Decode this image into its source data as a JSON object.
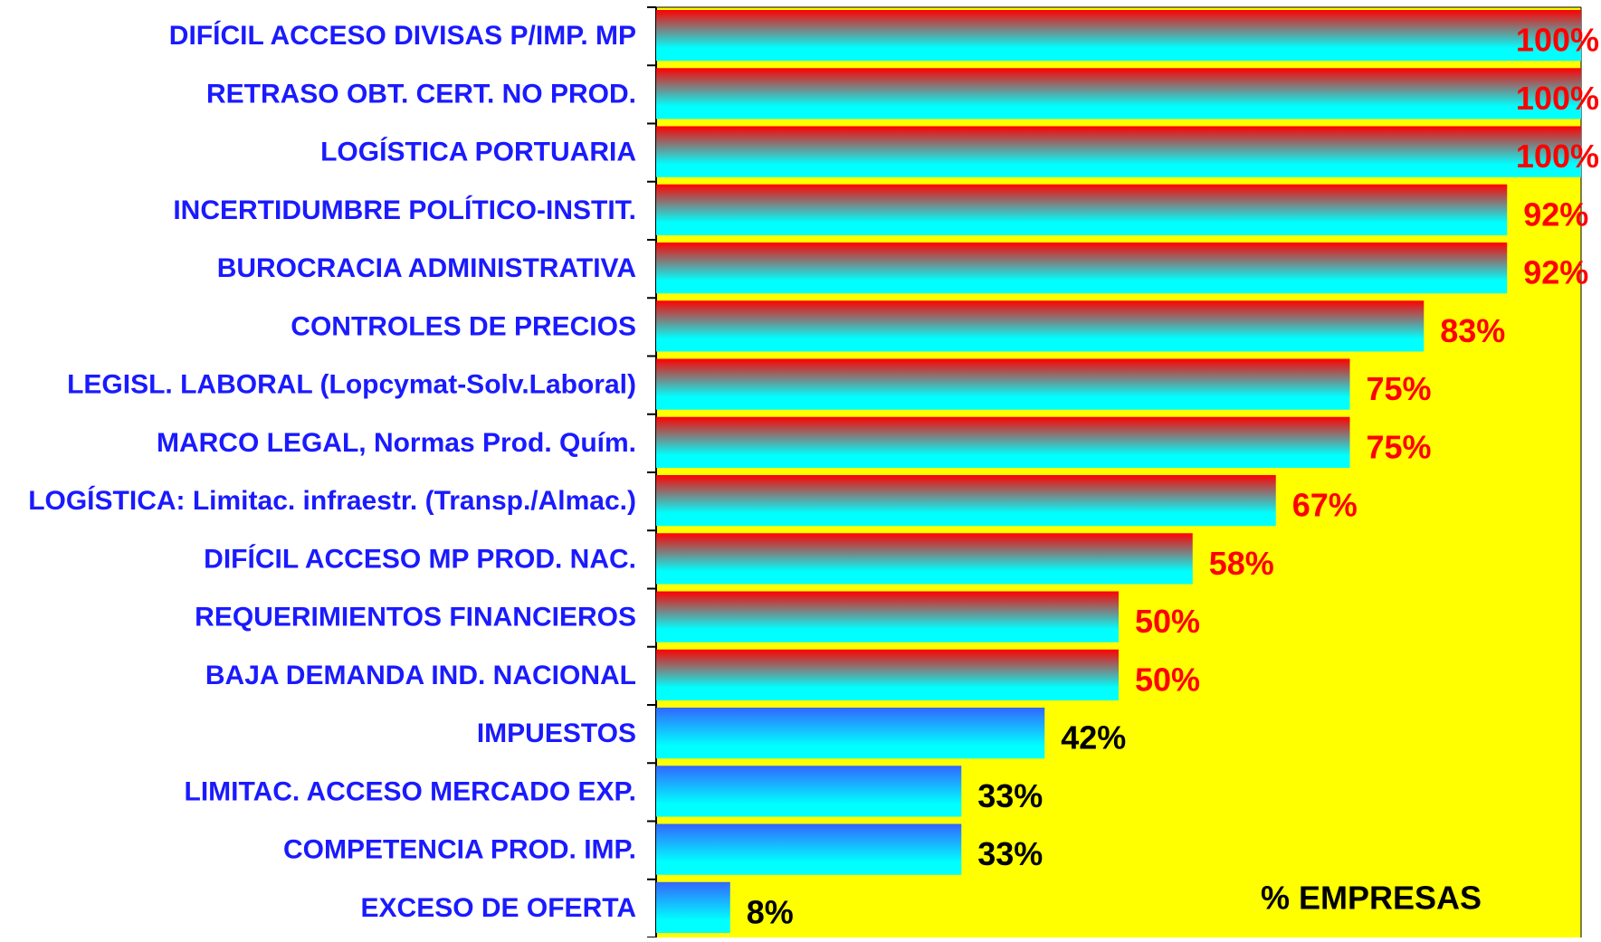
{
  "chart_data": {
    "type": "barh",
    "categories": [
      "DIFÍCIL ACCESO DIVISAS P/IMP. MP",
      "RETRASO OBT. CERT. NO PROD.",
      "LOGÍSTICA PORTUARIA",
      "INCERTIDUMBRE POLÍTICO-INSTIT.",
      "BUROCRACIA ADMINISTRATIVA",
      "CONTROLES DE PRECIOS",
      "LEGISL. LABORAL (Lopcymat-Solv.Laboral)",
      "MARCO LEGAL, Normas Prod. Quím.",
      "LOGÍSTICA: Limitac. infraestr. (Transp./Almac.)",
      "DIFÍCIL ACCESO MP PROD. NAC.",
      "REQUERIMIENTOS FINANCIEROS",
      "BAJA DEMANDA IND. NACIONAL",
      "IMPUESTOS",
      "LIMITAC. ACCESO MERCADO EXP.",
      "COMPETENCIA PROD. IMP.",
      "EXCESO DE OFERTA"
    ],
    "values": [
      100,
      100,
      100,
      92,
      92,
      83,
      75,
      75,
      67,
      58,
      50,
      50,
      42,
      33,
      33,
      8
    ],
    "value_labels": [
      "100%",
      "100%",
      "100%",
      "92%",
      "92%",
      "83%",
      "75%",
      "75%",
      "67%",
      "58%",
      "50%",
      "50%",
      "42%",
      "33%",
      "33%",
      "8%"
    ],
    "colors": [
      "#ff0000",
      "#ff0000",
      "#ff0000",
      "#ff0000",
      "#ff0000",
      "#ff0000",
      "#ff0000",
      "#ff0000",
      "#ff0000",
      "#ff0000",
      "#ff0000",
      "#ff0000",
      "#3366ff",
      "#3366ff",
      "#3366ff",
      "#3366ff"
    ],
    "label_colors": [
      "#ff0000",
      "#ff0000",
      "#ff0000",
      "#ff0000",
      "#ff0000",
      "#ff0000",
      "#ff0000",
      "#ff0000",
      "#ff0000",
      "#ff0000",
      "#ff0000",
      "#ff0000",
      "#000000",
      "#000000",
      "#000000",
      "#000000"
    ],
    "xlim": [
      0,
      100
    ],
    "xlabel": "% EMPRESAS",
    "background": "#ffff00"
  }
}
